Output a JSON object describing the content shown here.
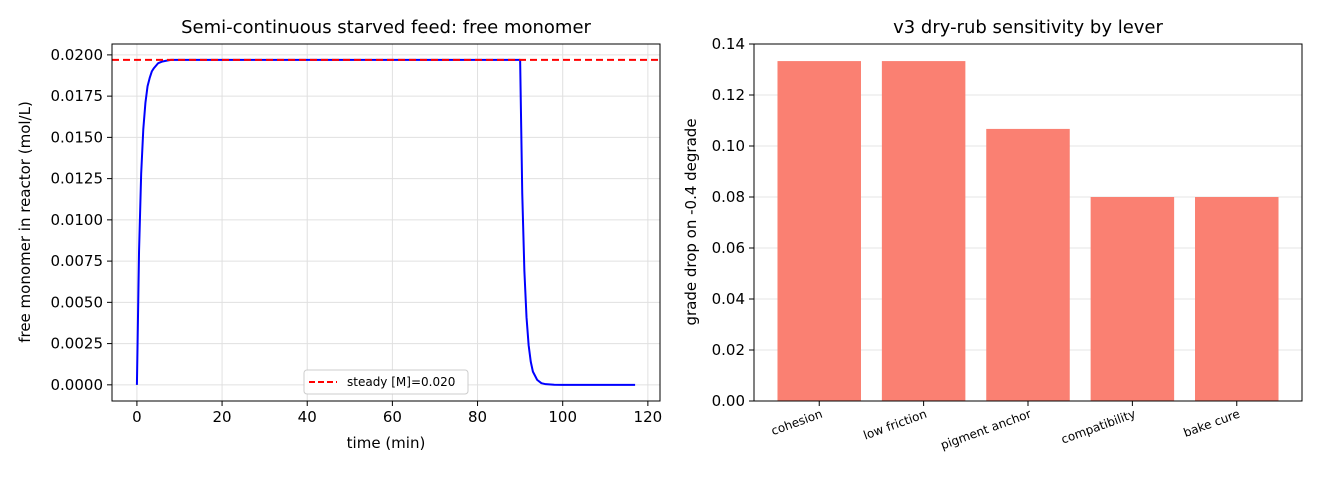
{
  "chart_data": [
    {
      "type": "line",
      "title": "Semi-continuous starved feed: free monomer",
      "xlabel": "time (min)",
      "ylabel": "free monomer in reactor (mol/L)",
      "xlim": [
        -5.85,
        122.85
      ],
      "ylim": [
        -0.00098,
        0.02066
      ],
      "xticks": [
        0,
        20,
        40,
        60,
        80,
        100,
        120
      ],
      "xtick_labels": [
        "0",
        "20",
        "40",
        "60",
        "80",
        "100",
        "120"
      ],
      "yticks": [
        0,
        0.0025,
        0.005,
        0.0075,
        0.01,
        0.0125,
        0.015,
        0.0175,
        0.02
      ],
      "ytick_labels": [
        "0.0000",
        "0.0025",
        "0.0050",
        "0.0075",
        "0.0100",
        "0.0125",
        "0.0150",
        "0.0175",
        "0.0200"
      ],
      "grid": true,
      "legend_position": "lower-center",
      "series": [
        {
          "color": "#0000ff",
          "style": "solid",
          "x": [
            0,
            0.5,
            1,
            1.5,
            2,
            2.5,
            3,
            3.5,
            4,
            5,
            6,
            7,
            8,
            10,
            20,
            40,
            60,
            80,
            89.5,
            90,
            90.5,
            91,
            91.5,
            92,
            92.5,
            93,
            94,
            95,
            96,
            98,
            100,
            110,
            117
          ],
          "y": [
            0,
            0.0081,
            0.0128,
            0.0155,
            0.0171,
            0.0181,
            0.0186,
            0.019,
            0.0192,
            0.0195,
            0.0196,
            0.01965,
            0.0197,
            0.0197,
            0.0197,
            0.0197,
            0.0197,
            0.0197,
            0.0197,
            0.0197,
            0.0116,
            0.0069,
            0.0041,
            0.0024,
            0.0014,
            0.0008,
            0.0003,
            0.0001,
            4e-05,
            5e-06,
            0,
            0,
            0
          ]
        },
        {
          "name": "steady [M]=0.020",
          "color": "#ff0000",
          "style": "dashed",
          "hline": 0.0197
        }
      ]
    },
    {
      "type": "bar",
      "title": "v3 dry-rub sensitivity by lever",
      "xlabel": "",
      "ylabel": "grade drop on -0.4 degrade",
      "ylim": [
        0,
        0.14
      ],
      "yticks": [
        0,
        0.02,
        0.04,
        0.06,
        0.08,
        0.1,
        0.12,
        0.14
      ],
      "ytick_labels": [
        "0.00",
        "0.02",
        "0.04",
        "0.06",
        "0.08",
        "0.10",
        "0.12",
        "0.14"
      ],
      "grid": true,
      "categories": [
        "cohesion",
        "low friction",
        "pigment anchor",
        "compatibility",
        "bake cure"
      ],
      "values": [
        0.1333,
        0.1333,
        0.1067,
        0.08,
        0.08
      ],
      "color": "#fa8072"
    }
  ]
}
